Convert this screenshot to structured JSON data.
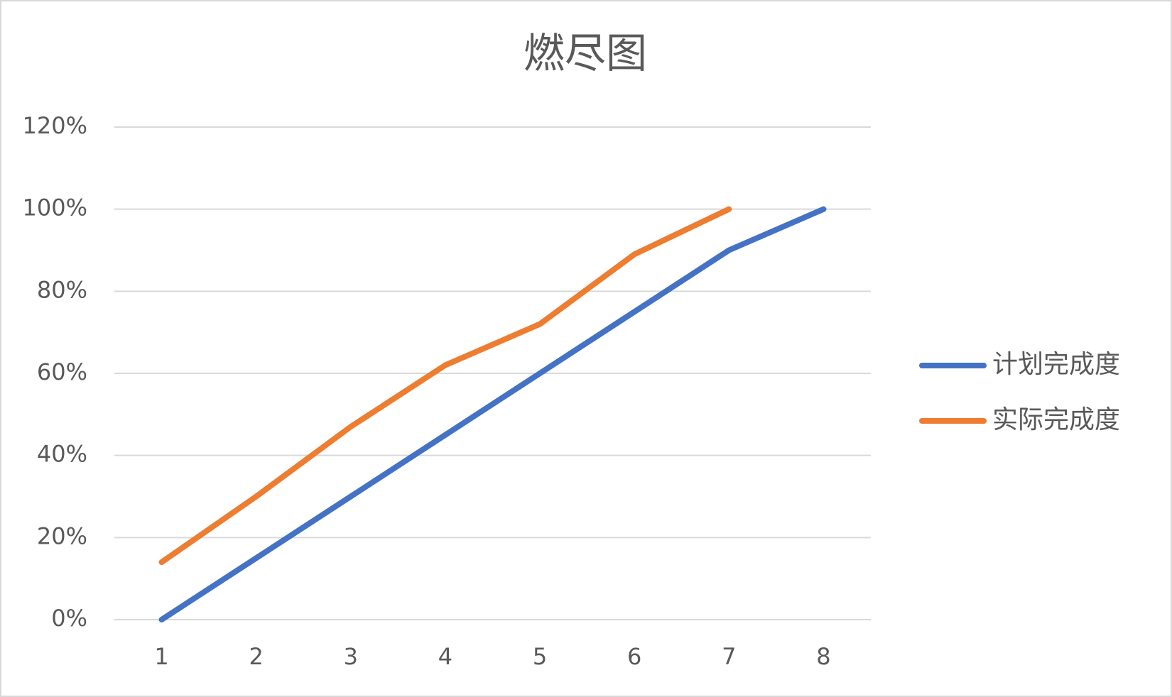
{
  "chart_data": {
    "type": "line",
    "title": "燃尽图",
    "categories": [
      "1",
      "2",
      "3",
      "4",
      "5",
      "6",
      "7",
      "8"
    ],
    "series": [
      {
        "name": "计划完成度",
        "color": "#4472c4",
        "values": [
          0,
          15,
          30,
          45,
          60,
          75,
          90,
          100
        ]
      },
      {
        "name": "实际完成度",
        "color": "#ed7d31",
        "values": [
          14,
          30,
          47,
          62,
          72,
          89,
          100,
          null
        ]
      }
    ],
    "ylim": [
      0,
      120
    ],
    "yticks": [
      {
        "value": 0,
        "label": "0%"
      },
      {
        "value": 20,
        "label": "20%"
      },
      {
        "value": 40,
        "label": "40%"
      },
      {
        "value": 60,
        "label": "60%"
      },
      {
        "value": 80,
        "label": "80%"
      },
      {
        "value": 100,
        "label": "100%"
      },
      {
        "value": 120,
        "label": "120%"
      }
    ],
    "grid": true,
    "legend": "right"
  }
}
